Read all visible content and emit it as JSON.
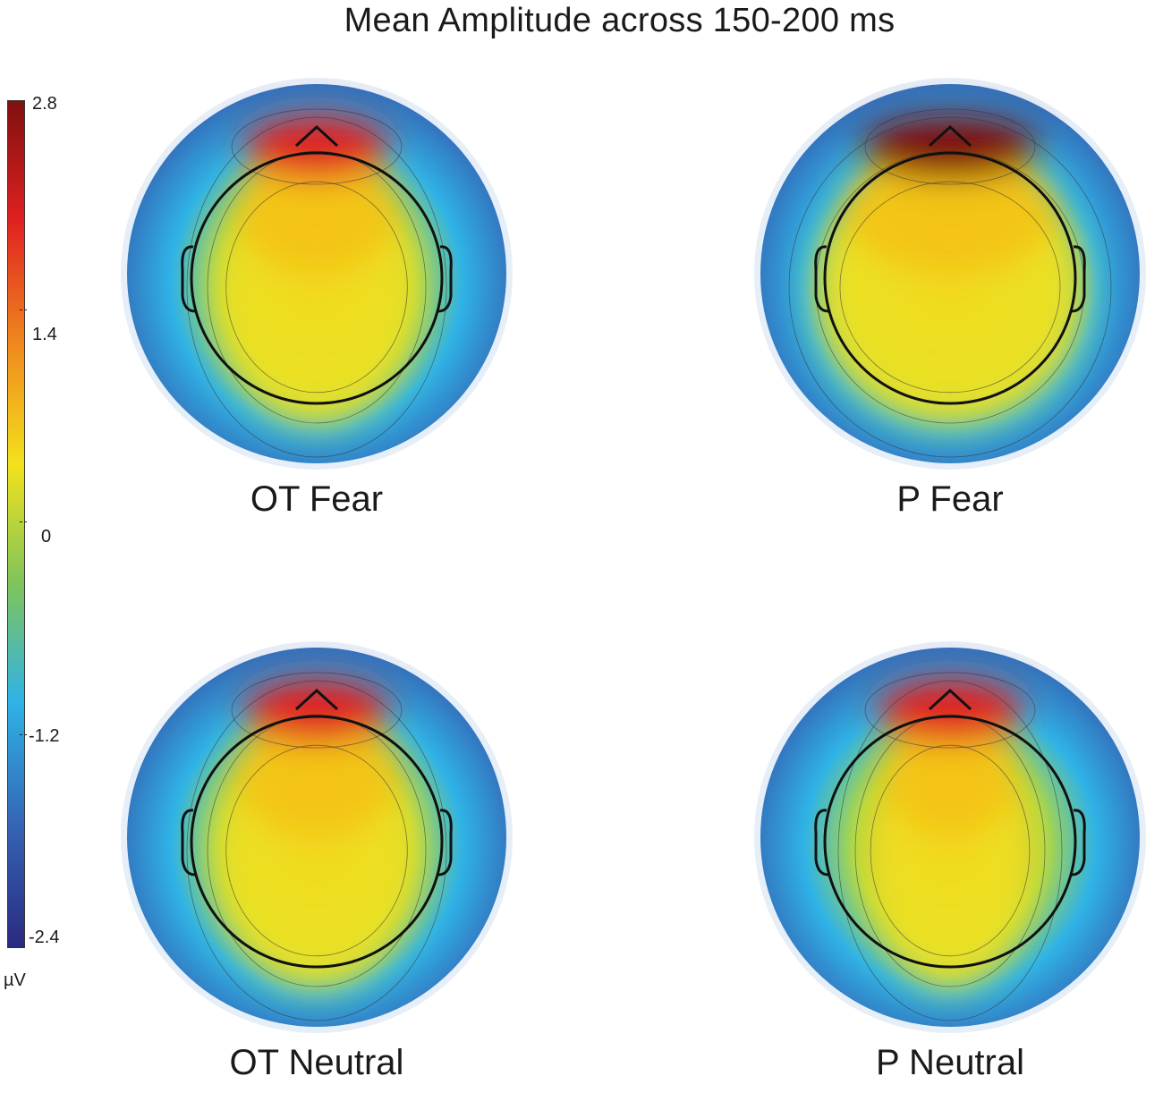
{
  "title": "Mean Amplitude across 150-200 ms",
  "colorbar": {
    "unit": "µV",
    "ticks": [
      "2.8",
      "1.4",
      "0",
      "-1.2",
      "-2.4"
    ],
    "colors": [
      "#801010",
      "#e02020",
      "#f08a1e",
      "#f2e21c",
      "#7fc45a",
      "#2fb3e6",
      "#3463b3",
      "#2a2a80"
    ]
  },
  "chart_data": {
    "type": "heatmap",
    "title": "Mean Amplitude across 150-200 ms",
    "colorbar_range": [
      -2.4,
      2.8
    ],
    "colorbar_ticks": [
      2.8,
      1.4,
      0,
      -1.2,
      -2.4
    ],
    "unit": "µV",
    "maps": [
      {
        "label": "OT Fear",
        "frontal_peak": 2.0,
        "central": 1.2,
        "periphery": -1.6,
        "style": "focal"
      },
      {
        "label": "P Fear",
        "frontal_peak": 2.5,
        "central": 1.5,
        "periphery": -1.8,
        "style": "broad"
      },
      {
        "label": "OT Neutral",
        "frontal_peak": 2.1,
        "central": 1.0,
        "periphery": -1.6,
        "style": "focal"
      },
      {
        "label": "P Neutral",
        "frontal_peak": 1.9,
        "central": 1.1,
        "periphery": -1.7,
        "style": "narrow"
      }
    ]
  }
}
